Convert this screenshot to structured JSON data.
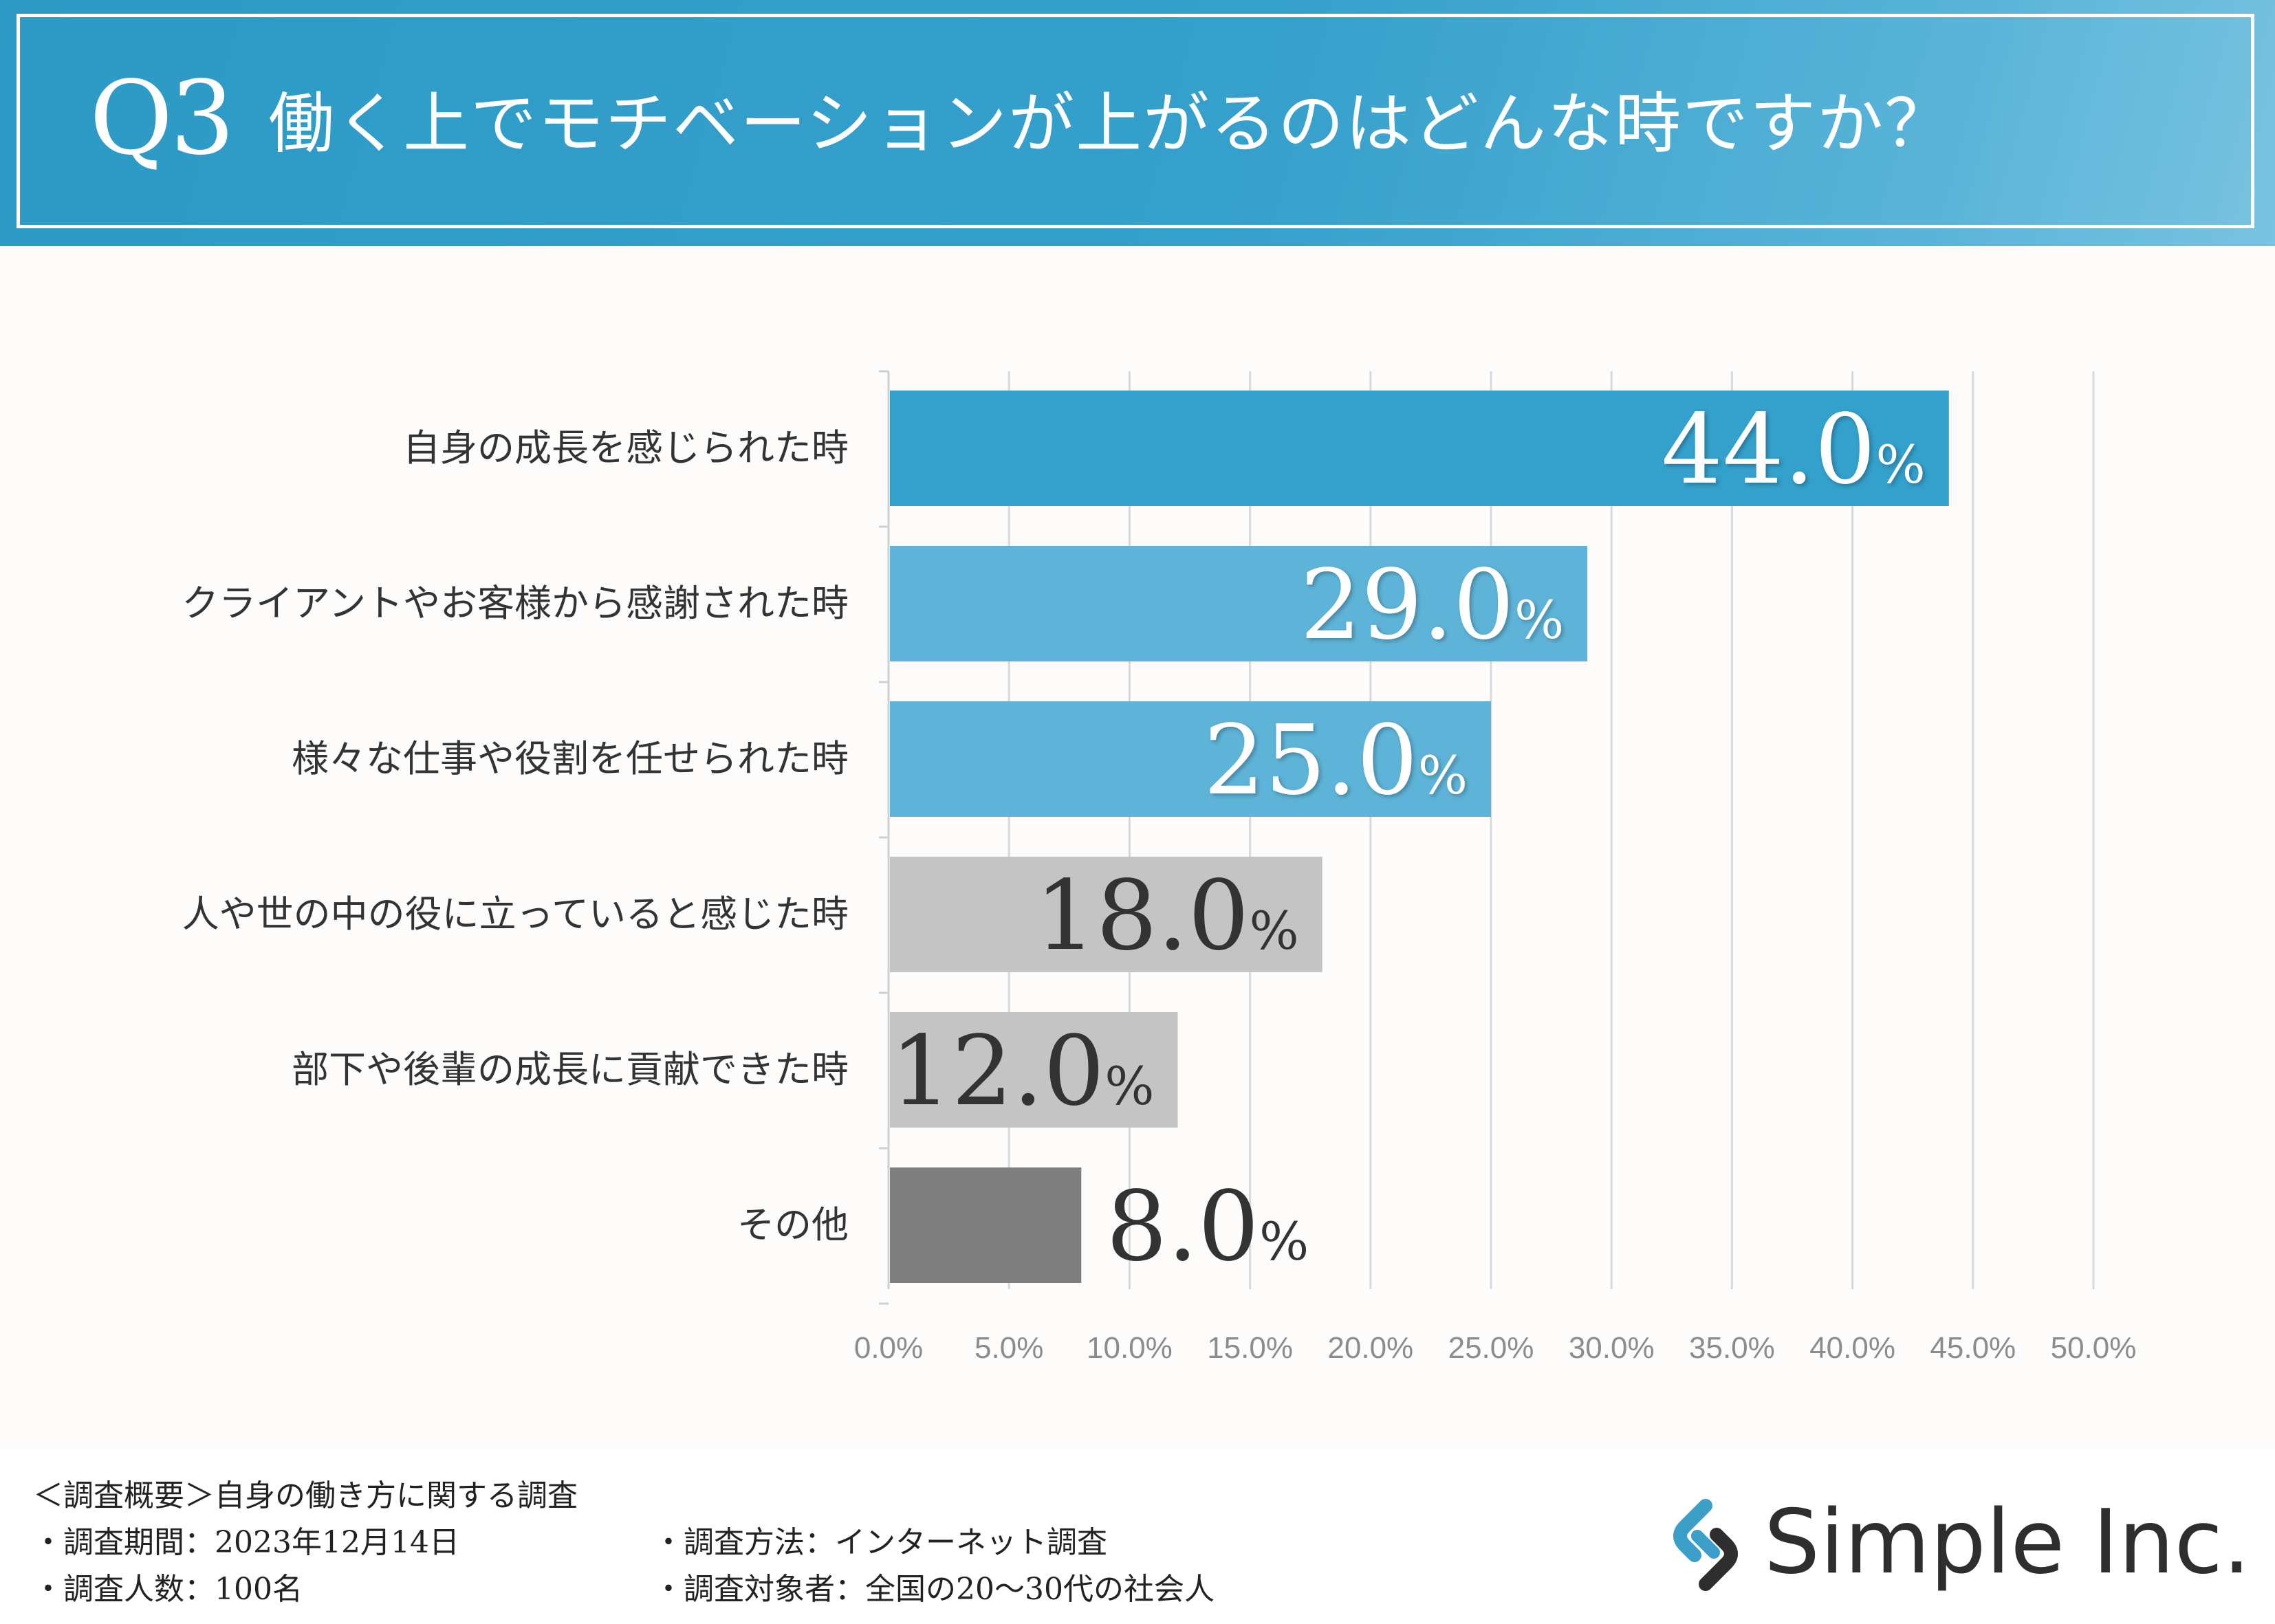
{
  "header": {
    "question_number": "Q3",
    "question_text": "働く上でモチベーションが上がるのはどんな時ですか？"
  },
  "chart_data": {
    "type": "bar",
    "orientation": "horizontal",
    "title": "働く上でモチベーションが上がるのはどんな時ですか？",
    "xlabel": "",
    "ylabel": "",
    "xlim": [
      0,
      50
    ],
    "grid": true,
    "categories": [
      "自身の成長を感じられた時",
      "クライアントやお客様から感謝された時",
      "様々な仕事や役割を任せられた時",
      "人や世の中の役に立っていると感じた時",
      "部下や後輩の成長に貢献できた時",
      "その他"
    ],
    "values": [
      44.0,
      29.0,
      25.0,
      18.0,
      12.0,
      8.0
    ],
    "value_labels": [
      "44.0",
      "29.0",
      "25.0",
      "18.0",
      "12.0",
      "8.0"
    ],
    "value_unit": "%",
    "bar_colors": [
      "#34a0cc",
      "#5eb4d8",
      "#5eb4d8",
      "#c4c4c4",
      "#c4c4c4",
      "#7f7f7f"
    ],
    "label_colors": [
      "#ffffff",
      "#ffffff",
      "#ffffff",
      "#333333",
      "#333333",
      "#333333"
    ],
    "ticks": [
      0,
      5,
      10,
      15,
      20,
      25,
      30,
      35,
      40,
      45,
      50
    ],
    "tick_labels": [
      "0.0%",
      "5.0%",
      "10.0%",
      "15.0%",
      "20.0%",
      "25.0%",
      "30.0%",
      "35.0%",
      "40.0%",
      "45.0%",
      "50.0%"
    ]
  },
  "footer": {
    "summary_title": "＜調査概要＞自身の働き方に関する調査",
    "period": "・調査期間：2023年12月14日",
    "count": "・調査人数：100名",
    "method": "・調査方法：インターネット調査",
    "target": "・調査対象者：全国の20〜30代の社会人"
  },
  "logo": {
    "text": "Simple Inc.",
    "icon": "simple-link-logo-icon",
    "colors": {
      "primary": "#3b9fc8",
      "secondary": "#2e2e2e"
    }
  }
}
